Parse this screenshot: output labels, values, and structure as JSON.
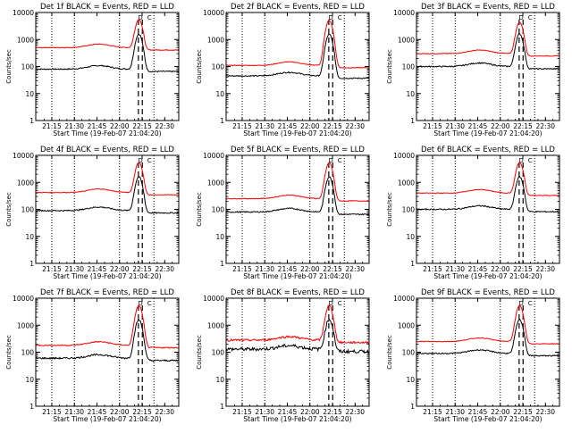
{
  "colors": {
    "events": "#000000",
    "lld": "#ff0000",
    "axes": "#000000",
    "background": "#ffffff"
  },
  "common": {
    "y_label": "Counts/sec",
    "x_label": "Start Time (19-Feb-07 21:04:20)",
    "x_tick_labels": [
      "21:15",
      "21:30",
      "21:45",
      "22:00",
      "22:15",
      "22:30"
    ],
    "y_tick_labels": [
      "1",
      "10",
      "100",
      "1000",
      "10000"
    ],
    "ylim": [
      1,
      10000
    ],
    "event_markers": [
      "D",
      "C"
    ]
  },
  "chart_data": [
    {
      "type": "line",
      "title": "Det 1f BLACK = Events, RED = LLD",
      "xlabel": "Start Time (19-Feb-07 21:04:20)",
      "ylabel": "Counts/sec",
      "ylim": [
        1,
        10000
      ],
      "x_ticks": [
        "21:15",
        "21:30",
        "21:45",
        "22:00",
        "22:15",
        "22:30"
      ],
      "series": [
        {
          "name": "Events",
          "color": "#000000",
          "baseline": 80,
          "peak": 1500,
          "noise": 0.05
        },
        {
          "name": "LLD",
          "color": "#ff0000",
          "baseline": 500,
          "peak": 5000,
          "noise": 0.03
        }
      ]
    },
    {
      "type": "line",
      "title": "Det 2f BLACK = Events, RED = LLD",
      "xlabel": "Start Time (19-Feb-07 21:04:20)",
      "ylabel": "Counts/sec",
      "ylim": [
        1,
        10000
      ],
      "x_ticks": [
        "21:15",
        "21:30",
        "21:45",
        "22:00",
        "22:15",
        "22:30"
      ],
      "series": [
        {
          "name": "Events",
          "color": "#000000",
          "baseline": 45,
          "peak": 1500,
          "noise": 0.05
        },
        {
          "name": "LLD",
          "color": "#ff0000",
          "baseline": 110,
          "peak": 5000,
          "noise": 0.03
        }
      ]
    },
    {
      "type": "line",
      "title": "Det 3f BLACK = Events, RED = LLD",
      "xlabel": "Start Time (19-Feb-07 21:04:20)",
      "ylabel": "Counts/sec",
      "ylim": [
        1,
        10000
      ],
      "x_ticks": [
        "21:15",
        "21:30",
        "21:45",
        "22:00",
        "22:15",
        "22:30"
      ],
      "series": [
        {
          "name": "Events",
          "color": "#000000",
          "baseline": 100,
          "peak": 1500,
          "noise": 0.05
        },
        {
          "name": "LLD",
          "color": "#ff0000",
          "baseline": 300,
          "peak": 4000,
          "noise": 0.03
        }
      ]
    },
    {
      "type": "line",
      "title": "Det 4f BLACK = Events, RED = LLD",
      "xlabel": "Start Time (19-Feb-07 21:04:20)",
      "ylabel": "Counts/sec",
      "ylim": [
        1,
        10000
      ],
      "x_ticks": [
        "21:15",
        "21:30",
        "21:45",
        "22:00",
        "22:15",
        "22:30"
      ],
      "series": [
        {
          "name": "Events",
          "color": "#000000",
          "baseline": 90,
          "peak": 1500,
          "noise": 0.05
        },
        {
          "name": "LLD",
          "color": "#ff0000",
          "baseline": 420,
          "peak": 5000,
          "noise": 0.03
        }
      ]
    },
    {
      "type": "line",
      "title": "Det 5f BLACK = Events, RED = LLD",
      "xlabel": "Start Time (19-Feb-07 21:04:20)",
      "ylabel": "Counts/sec",
      "ylim": [
        1,
        10000
      ],
      "x_ticks": [
        "21:15",
        "21:30",
        "21:45",
        "22:00",
        "22:15",
        "22:30"
      ],
      "series": [
        {
          "name": "Events",
          "color": "#000000",
          "baseline": 80,
          "peak": 1500,
          "noise": 0.05
        },
        {
          "name": "LLD",
          "color": "#ff0000",
          "baseline": 250,
          "peak": 5000,
          "noise": 0.03
        }
      ]
    },
    {
      "type": "line",
      "title": "Det 6f BLACK = Events, RED = LLD",
      "xlabel": "Start Time (19-Feb-07 21:04:20)",
      "ylabel": "Counts/sec",
      "ylim": [
        1,
        10000
      ],
      "x_ticks": [
        "21:15",
        "21:30",
        "21:45",
        "22:00",
        "22:15",
        "22:30"
      ],
      "series": [
        {
          "name": "Events",
          "color": "#000000",
          "baseline": 100,
          "peak": 1500,
          "noise": 0.05
        },
        {
          "name": "LLD",
          "color": "#ff0000",
          "baseline": 400,
          "peak": 5000,
          "noise": 0.03
        }
      ]
    },
    {
      "type": "line",
      "title": "Det 7f BLACK = Events, RED = LLD",
      "xlabel": "Start Time (19-Feb-07 21:04:20)",
      "ylabel": "Counts/sec",
      "ylim": [
        1,
        10000
      ],
      "x_ticks": [
        "21:15",
        "21:30",
        "21:45",
        "22:00",
        "22:15",
        "22:30"
      ],
      "series": [
        {
          "name": "Events",
          "color": "#000000",
          "baseline": 60,
          "peak": 1500,
          "noise": 0.07
        },
        {
          "name": "LLD",
          "color": "#ff0000",
          "baseline": 180,
          "peak": 5000,
          "noise": 0.05
        }
      ]
    },
    {
      "type": "line",
      "title": "Det 8f BLACK = Events, RED = LLD",
      "xlabel": "Start Time (19-Feb-07 21:04:20)",
      "ylabel": "Counts/sec",
      "ylim": [
        1,
        10000
      ],
      "x_ticks": [
        "21:15",
        "21:30",
        "21:45",
        "22:00",
        "22:15",
        "22:30"
      ],
      "series": [
        {
          "name": "Events",
          "color": "#000000",
          "baseline": 130,
          "peak": 1500,
          "noise": 0.14
        },
        {
          "name": "LLD",
          "color": "#ff0000",
          "baseline": 280,
          "peak": 5000,
          "noise": 0.09
        }
      ]
    },
    {
      "type": "line",
      "title": "Det 9f BLACK = Events, RED = LLD",
      "xlabel": "Start Time (19-Feb-07 21:04:20)",
      "ylabel": "Counts/sec",
      "ylim": [
        1,
        10000
      ],
      "x_ticks": [
        "21:15",
        "21:30",
        "21:45",
        "22:00",
        "22:15",
        "22:30"
      ],
      "series": [
        {
          "name": "Events",
          "color": "#000000",
          "baseline": 90,
          "peak": 1500,
          "noise": 0.05
        },
        {
          "name": "LLD",
          "color": "#ff0000",
          "baseline": 250,
          "peak": 5000,
          "noise": 0.03
        }
      ]
    }
  ]
}
